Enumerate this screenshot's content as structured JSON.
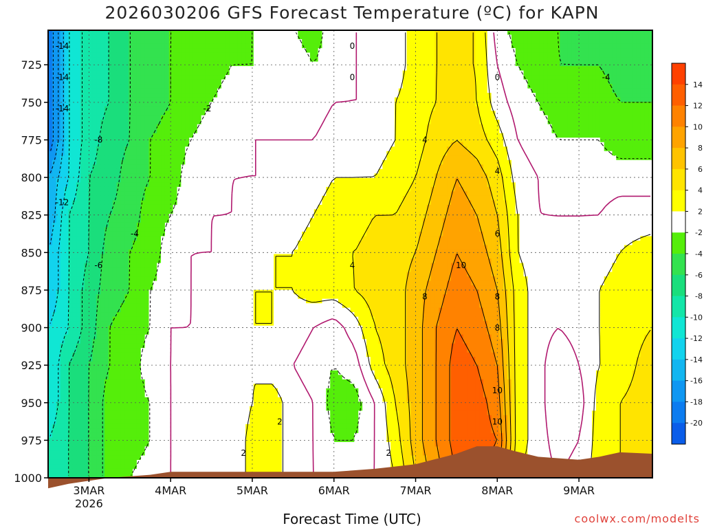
{
  "title": "2026030206 GFS Forecast Temperature (ºC) for KAPN",
  "xlabel": "Forecast Time (UTC)",
  "credit": "coolwx.com/modelts",
  "colors": {
    "ground": "#9b512d",
    "zero_contour": "#b0186e",
    "bands": [
      {
        "min": -22,
        "max": -20,
        "color": "#0a5de9"
      },
      {
        "min": -20,
        "max": -18,
        "color": "#0c7cf0"
      },
      {
        "min": -18,
        "max": -16,
        "color": "#0f97f2"
      },
      {
        "min": -16,
        "max": -14,
        "color": "#12b6f1"
      },
      {
        "min": -14,
        "max": -12,
        "color": "#12d3ee"
      },
      {
        "min": -12,
        "max": -10,
        "color": "#10e6d4"
      },
      {
        "min": -10,
        "max": -8,
        "color": "#13e6a8"
      },
      {
        "min": -8,
        "max": -6,
        "color": "#1ade7c"
      },
      {
        "min": -6,
        "max": -4,
        "color": "#33e24f"
      },
      {
        "min": -4,
        "max": -2,
        "color": "#55ee0a"
      },
      {
        "min": -2,
        "max": 2,
        "color": "#ffffff"
      },
      {
        "min": 2,
        "max": 4,
        "color": "#ffff00"
      },
      {
        "min": 4,
        "max": 6,
        "color": "#ffe400"
      },
      {
        "min": 6,
        "max": 8,
        "color": "#ffc300"
      },
      {
        "min": 8,
        "max": 10,
        "color": "#ffa300"
      },
      {
        "min": 10,
        "max": 12,
        "color": "#ff8200"
      },
      {
        "min": 12,
        "max": 14,
        "color": "#ff5f00"
      },
      {
        "min": 14,
        "max": 16,
        "color": "#ff4100"
      }
    ]
  },
  "chart_data": {
    "type": "heatmap",
    "title": "2026030206 GFS Forecast Temperature (ºC) for KAPN",
    "xlabel": "Forecast Time (UTC)",
    "ylabel": "",
    "y_axis": {
      "min": 1000,
      "max": 702,
      "label_min": 725,
      "label_max": 1000,
      "step": 25,
      "ticks": [
        725,
        750,
        775,
        800,
        825,
        850,
        875,
        900,
        925,
        950,
        975,
        1000
      ]
    },
    "x_axis": {
      "min": -0.5,
      "max": 6.9,
      "ticks": [
        {
          "t": 0,
          "label": "3MAR",
          "sublabel": "2026"
        },
        {
          "t": 1,
          "label": "4MAR",
          "sublabel": ""
        },
        {
          "t": 2,
          "label": "5MAR",
          "sublabel": ""
        },
        {
          "t": 3,
          "label": "6MAR",
          "sublabel": ""
        },
        {
          "t": 4,
          "label": "7MAR",
          "sublabel": ""
        },
        {
          "t": 5,
          "label": "8MAR",
          "sublabel": ""
        },
        {
          "t": 6,
          "label": "9MAR",
          "sublabel": ""
        }
      ]
    },
    "grid": true,
    "colorbar": {
      "levels": [
        14,
        12,
        10,
        8,
        6,
        4,
        2,
        -2,
        -4,
        -6,
        -8,
        -10,
        -12,
        -14,
        -16,
        -18,
        -20
      ]
    },
    "times": [
      -0.5,
      -0.25,
      0,
      0.25,
      0.5,
      0.75,
      1,
      1.25,
      1.5,
      1.75,
      2,
      2.25,
      2.5,
      2.75,
      3,
      3.25,
      3.5,
      3.75,
      4,
      4.25,
      4.5,
      4.75,
      5,
      5.25,
      5.5,
      5.75,
      6,
      6.25,
      6.5,
      6.9
    ],
    "levels_hpa": [
      700,
      725,
      750,
      775,
      800,
      825,
      850,
      875,
      900,
      925,
      950,
      975,
      1000
    ],
    "temperature": [
      [
        -20,
        -12,
        -9,
        -8,
        -6,
        -5,
        -4,
        -4,
        -4,
        -3,
        -2,
        -1,
        -2,
        -3,
        -1,
        0,
        0,
        1,
        3,
        4,
        4,
        4,
        -1,
        -3,
        -4,
        -4,
        -5,
        -5,
        -5,
        -5
      ],
      [
        -20,
        -12,
        -9,
        -8,
        -6,
        -5,
        -4,
        -3,
        -3,
        -2,
        -2,
        -1,
        -1,
        -2,
        -1,
        0,
        0,
        1,
        3,
        4,
        4,
        4,
        0,
        -2,
        -3,
        -4,
        -4,
        -4,
        -5,
        -5
      ],
      [
        -20,
        -12,
        -9,
        -8,
        -6,
        -5,
        -4,
        -3,
        -2,
        -1,
        -1,
        -1,
        0,
        -1,
        0,
        0,
        0,
        2,
        3,
        4,
        5,
        4,
        1,
        -1,
        -2,
        -3,
        -3,
        -3,
        -4,
        -4
      ],
      [
        -20,
        -12,
        -9,
        -7,
        -6,
        -4,
        -3,
        -2,
        -1,
        -1,
        0,
        0,
        0,
        0,
        1,
        1,
        1,
        2,
        3,
        5,
        6,
        5,
        3,
        0,
        -1,
        -2,
        -2,
        -2,
        -3,
        -3
      ],
      [
        -16,
        -12,
        -8,
        -7,
        -5,
        -4,
        -3,
        -1,
        -1,
        0,
        0,
        0,
        0,
        1,
        2,
        2,
        2,
        3,
        4,
        6,
        8,
        7,
        5,
        1,
        0,
        -1,
        -1,
        -1,
        -1,
        -1
      ],
      [
        -16,
        -10,
        -8,
        -6,
        -5,
        -3,
        -2,
        -1,
        0,
        0,
        1,
        1,
        1,
        2,
        3,
        3,
        4,
        4,
        5,
        7,
        9,
        8,
        6,
        2,
        0,
        0,
        0,
        0,
        1,
        1
      ],
      [
        -14,
        -10,
        -8,
        -5,
        -4,
        -3,
        -1,
        0,
        0,
        1,
        1,
        2,
        2,
        3,
        4,
        4,
        5,
        5,
        6,
        8,
        10,
        9,
        7,
        2,
        1,
        0,
        0,
        1,
        2,
        3
      ],
      [
        -14,
        -10,
        -7,
        -5,
        -4,
        -2,
        -1,
        0,
        1,
        1,
        2,
        2,
        2,
        3,
        3,
        4,
        5,
        5,
        7,
        9,
        11,
        10,
        8,
        3,
        1,
        0,
        1,
        2,
        3,
        4
      ],
      [
        -12,
        -10,
        -7,
        -4,
        -3,
        -2,
        0,
        0,
        1,
        1,
        2,
        2,
        1,
        0,
        -1,
        1,
        4,
        5,
        7,
        10,
        12,
        11,
        9,
        3,
        1,
        0,
        1,
        2,
        3,
        4
      ],
      [
        -12,
        -8,
        -6,
        -4,
        -3,
        -1,
        0,
        1,
        1,
        1,
        2,
        1,
        0,
        -1,
        -2,
        -1,
        3,
        5,
        7,
        10,
        13,
        12,
        10,
        3,
        1,
        -2,
        0,
        2,
        3,
        5
      ],
      [
        -12,
        -8,
        -6,
        -3,
        -3,
        -2,
        0,
        1,
        1,
        0,
        2,
        3,
        1,
        0,
        -3,
        -3,
        0,
        4,
        7,
        10,
        13,
        13,
        11,
        3,
        1,
        -2,
        -1,
        3,
        4,
        5
      ],
      [
        -10,
        -8,
        -6,
        -3,
        -3,
        -2,
        0,
        1,
        1,
        0,
        3,
        3,
        1,
        0,
        -2,
        -2,
        0,
        3,
        7,
        10,
        13,
        13,
        12,
        3,
        1,
        -1,
        0,
        3,
        4,
        5
      ],
      [
        -10,
        -8,
        -6,
        -3,
        -2,
        -1,
        0,
        1,
        1,
        0,
        3,
        3,
        1,
        0,
        -1,
        -1,
        0,
        2,
        6,
        9,
        12,
        12,
        11,
        2,
        1,
        0,
        1,
        3,
        4,
        5
      ]
    ],
    "surface_pressure_hpa": [
      [
        -0.5,
        1007
      ],
      [
        -0.25,
        1004
      ],
      [
        0.25,
        1000
      ],
      [
        0.75,
        998
      ],
      [
        1.0,
        996
      ],
      [
        1.5,
        996
      ],
      [
        2.0,
        996
      ],
      [
        2.5,
        996
      ],
      [
        3.0,
        996
      ],
      [
        3.5,
        994
      ],
      [
        4.0,
        991
      ],
      [
        4.5,
        984
      ],
      [
        4.75,
        979
      ],
      [
        5.0,
        979
      ],
      [
        5.2,
        982
      ],
      [
        5.5,
        986
      ],
      [
        6.0,
        988
      ],
      [
        6.25,
        986
      ],
      [
        6.5,
        983
      ],
      [
        6.9,
        984
      ]
    ]
  }
}
